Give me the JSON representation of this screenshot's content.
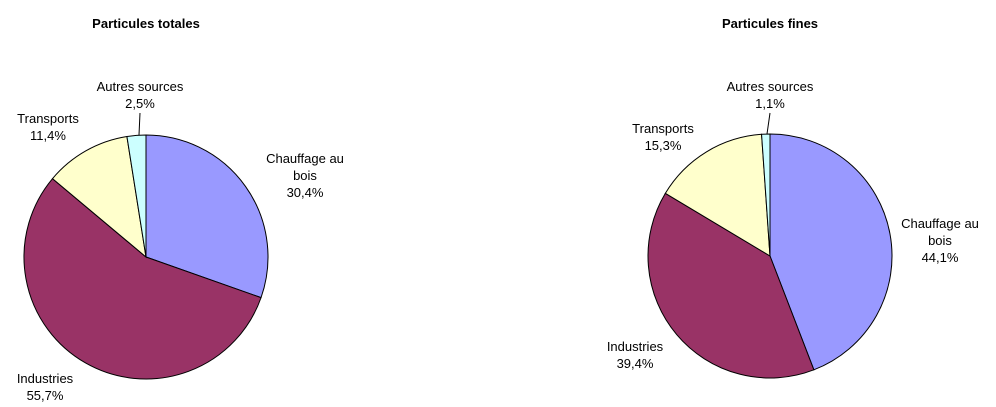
{
  "chart_data": [
    {
      "type": "pie",
      "title": "Particules totales",
      "categories": [
        "Chauffage au bois",
        "Industries",
        "Transports",
        "Autres sources"
      ],
      "values": [
        30.4,
        55.7,
        11.4,
        2.5
      ],
      "value_labels": [
        "30,4%",
        "55,7%",
        "11,4%",
        "2,5%"
      ],
      "colors": [
        "#9999ff",
        "#993366",
        "#ffffcc",
        "#ccffff"
      ]
    },
    {
      "type": "pie",
      "title": "Particules fines",
      "categories": [
        "Chauffage au bois",
        "Industries",
        "Transports",
        "Autres sources"
      ],
      "values": [
        44.1,
        39.4,
        15.3,
        1.1
      ],
      "value_labels": [
        "44,1%",
        "39,4%",
        "15,3%",
        "1,1%"
      ],
      "colors": [
        "#9999ff",
        "#993366",
        "#ffffcc",
        "#ccffff"
      ]
    }
  ]
}
